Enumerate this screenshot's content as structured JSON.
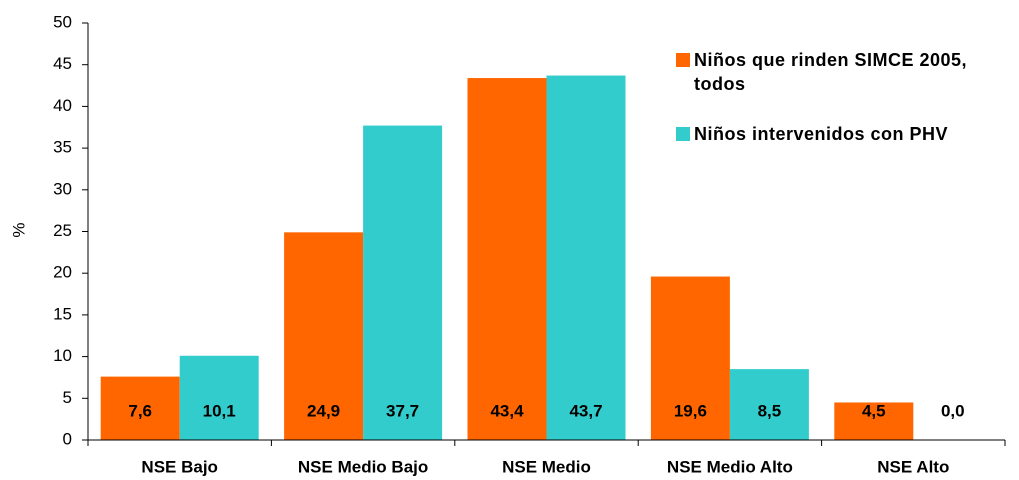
{
  "chart_data": {
    "type": "bar",
    "categories": [
      "NSE Bajo",
      "NSE Medio Bajo",
      "NSE Medio",
      "NSE Medio Alto",
      "NSE Alto"
    ],
    "series": [
      {
        "name": "Niños que rinden SIMCE 2005, todos",
        "color": "#ff6600",
        "values": [
          7.6,
          24.9,
          43.4,
          19.6,
          4.5
        ],
        "value_labels": [
          "7,6",
          "24,9",
          "43,4",
          "19,6",
          "4,5"
        ]
      },
      {
        "name": "Niños intervenidos con PHV",
        "color": "#33cccc",
        "values": [
          10.1,
          37.7,
          43.7,
          8.5,
          0.0
        ],
        "value_labels": [
          "10,1",
          "37,7",
          "43,7",
          "8,5",
          "0,0"
        ]
      }
    ],
    "ylabel": "%",
    "ylim": [
      0,
      50
    ],
    "yticks": [
      0,
      5,
      10,
      15,
      20,
      25,
      30,
      35,
      40,
      45,
      50
    ],
    "legend": "upper right"
  }
}
